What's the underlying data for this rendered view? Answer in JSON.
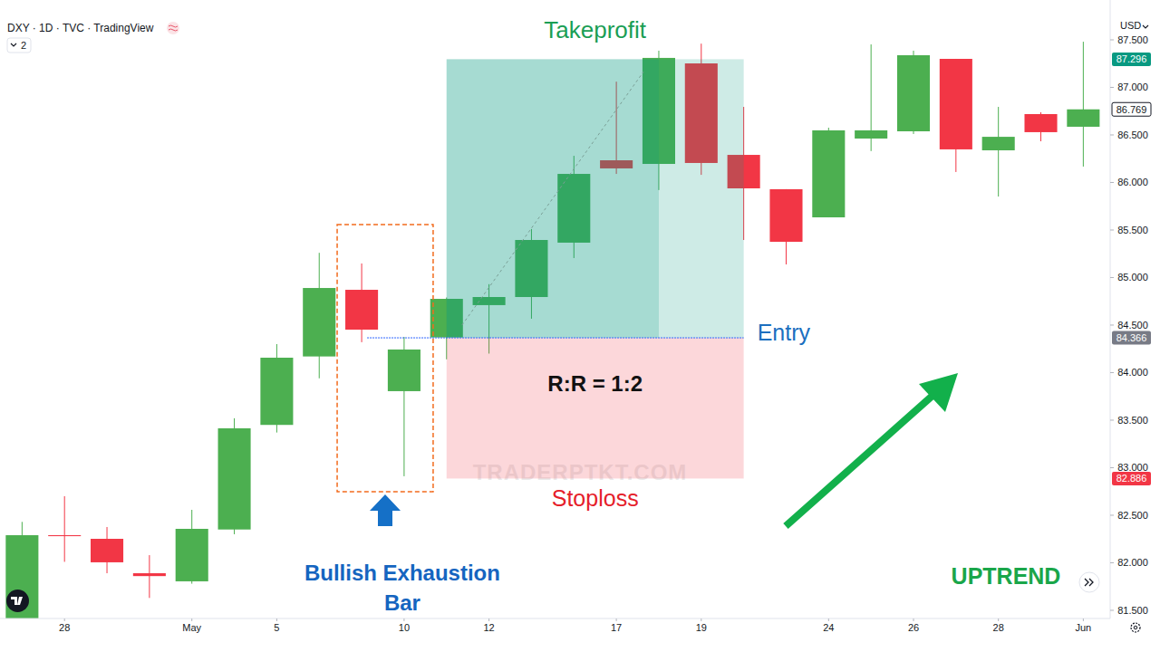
{
  "chart_data": {
    "type": "candlestick",
    "title": "DXY · 1D · TVC · TradingView",
    "header_badge": 2,
    "currency": "USD",
    "watermark": "TRADERPTKT.COM",
    "categories": [
      null,
      "28",
      null,
      null,
      "May",
      null,
      "5",
      null,
      null,
      "10",
      null,
      "12",
      null,
      null,
      "17",
      null,
      "19",
      null,
      null,
      "24",
      null,
      "26",
      null,
      "28",
      null,
      "Jun"
    ],
    "open": [
      81.3,
      82.29,
      82.252,
      81.89,
      81.805,
      82.35,
      83.45,
      84.17,
      84.871,
      83.805,
      84.37,
      84.71,
      84.795,
      85.367,
      86.233,
      86.195,
      87.252,
      86.29,
      85.929,
      85.633,
      86.462,
      86.538,
      87.3,
      86.338,
      86.719,
      86.586
    ],
    "high": [
      82.43,
      82.7,
      82.376,
      82.08,
      82.557,
      83.52,
      84.3,
      85.26,
      85.148,
      84.376,
      84.79,
      84.93,
      85.51,
      86.28,
      87.06,
      87.386,
      87.46,
      86.795,
      85.929,
      86.576,
      87.452,
      87.386,
      87.3,
      86.795,
      86.738,
      87.48
    ],
    "low": [
      81.2,
      82.01,
      81.89,
      81.63,
      81.78,
      82.3,
      83.37,
      83.94,
      84.32,
      82.91,
      84.14,
      84.2,
      84.567,
      85.205,
      86.09,
      85.92,
      86.08,
      85.395,
      85.138,
      85.633,
      86.33,
      86.51,
      86.11,
      85.852,
      86.433,
      86.167
    ],
    "close": [
      82.29,
      82.28,
      82.005,
      81.86,
      82.357,
      83.414,
      84.157,
      84.89,
      84.452,
      84.243,
      84.776,
      84.795,
      85.395,
      86.09,
      86.148,
      87.31,
      86.205,
      85.938,
      85.376,
      86.548,
      86.548,
      87.338,
      86.348,
      86.48,
      86.529,
      86.769
    ],
    "ylim": [
      81.414,
      87.919
    ],
    "yticks": [
      {
        "value": 81.5,
        "label": "81.500"
      },
      {
        "value": 82,
        "label": "82.000"
      },
      {
        "value": 82.5,
        "label": "82.500"
      },
      {
        "value": 83,
        "label": "83.000"
      },
      {
        "value": 83.5,
        "label": "83.500"
      },
      {
        "value": 84,
        "label": "84.000"
      },
      {
        "value": 84.5,
        "label": "84.500"
      },
      {
        "value": 85,
        "label": "85.000"
      },
      {
        "value": 85.5,
        "label": "85.500"
      },
      {
        "value": 86,
        "label": "86.000"
      },
      {
        "value": 86.5,
        "label": "86.500"
      },
      {
        "value": 87,
        "label": "87.000"
      },
      {
        "value": 87.5,
        "label": "87.500"
      }
    ],
    "grid": false,
    "position": {
      "entry": 84.366,
      "take_profit": 87.296,
      "stop_loss": 82.886,
      "entry_label": "Entry",
      "take_profit_label": "Takeprofit",
      "stop_loss_label": "Stoploss",
      "ratio_label": "R:R = 1:2",
      "start_index": 10,
      "end_index": 17
    },
    "pattern": {
      "lines": [
        "Bullish Exhaustion",
        "Bar"
      ],
      "start_index": 8,
      "end_index": 9
    },
    "trend": "UPTREND"
  }
}
